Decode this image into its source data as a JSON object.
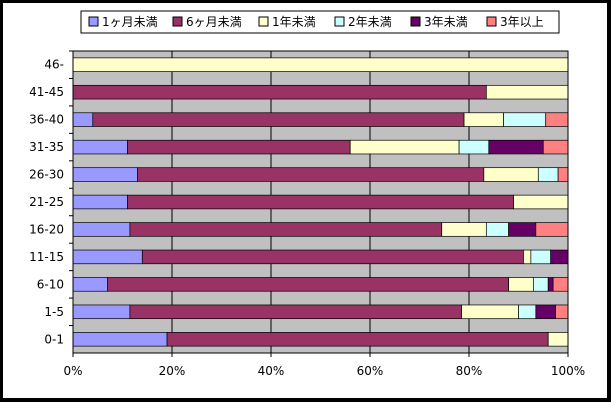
{
  "chart_data": {
    "type": "bar",
    "orientation": "horizontal",
    "stacking": "percent",
    "categories": [
      "0-1",
      "1-5",
      "6-10",
      "11-15",
      "16-20",
      "21-25",
      "26-30",
      "31-35",
      "36-40",
      "41-45",
      "46-"
    ],
    "series": [
      {
        "name": "1ヶ月未満",
        "color": "#9999FF",
        "values": [
          19,
          11.5,
          7,
          14,
          11.5,
          11,
          13,
          11,
          4,
          0,
          0
        ]
      },
      {
        "name": "6ヶ月未満",
        "color": "#993366",
        "values": [
          77,
          67,
          81,
          77,
          63,
          78,
          70,
          45,
          75,
          83.5,
          0
        ]
      },
      {
        "name": "1年未満",
        "color": "#FFFFCC",
        "values": [
          4,
          11.5,
          5,
          1.5,
          9,
          11,
          11,
          22,
          8,
          16.5,
          100
        ]
      },
      {
        "name": "2年未満",
        "color": "#CCFFFF",
        "values": [
          0,
          3.5,
          3,
          4,
          4.5,
          0,
          4,
          6,
          8.5,
          0,
          0
        ]
      },
      {
        "name": "3年未満",
        "color": "#660066",
        "values": [
          0,
          4,
          1,
          3.5,
          5.5,
          0,
          0,
          11,
          0,
          0,
          0
        ]
      },
      {
        "name": "3年以上",
        "color": "#FF8080",
        "values": [
          0,
          2.5,
          3,
          0,
          6.5,
          0,
          2,
          5,
          4.5,
          0,
          0
        ]
      }
    ],
    "x_ticks": [
      "0%",
      "20%",
      "40%",
      "60%",
      "80%",
      "100%"
    ],
    "xlim": [
      0,
      100
    ],
    "grid": true,
    "legend_position": "top"
  }
}
